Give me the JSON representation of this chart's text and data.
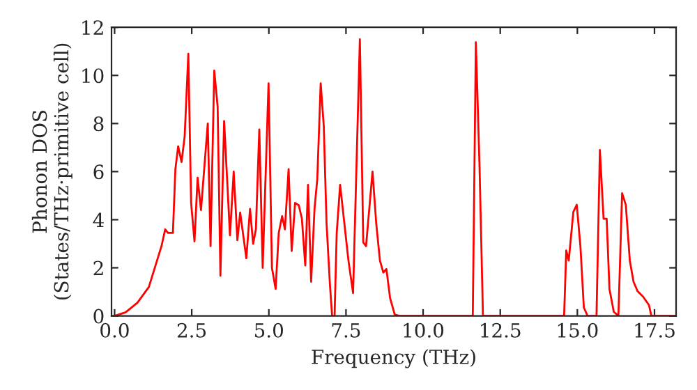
{
  "chart_data": {
    "type": "line",
    "xlabel": "Frequency (THz)",
    "ylabel": "Phonon DOS\n(States/THz·primitive cell)",
    "xlim": [
      -0.1,
      18.2
    ],
    "xticks": [
      {
        "value": 0,
        "label": "0.0"
      },
      {
        "value": 2.5,
        "label": "2.5"
      },
      {
        "value": 5,
        "label": "5.0"
      },
      {
        "value": 7.5,
        "label": "7.5"
      },
      {
        "value": 10,
        "label": "10.0"
      },
      {
        "value": 12.5,
        "label": "12.5"
      },
      {
        "value": 15,
        "label": "15.0"
      },
      {
        "value": 17.5,
        "label": "17.5"
      }
    ],
    "ylim": [
      0,
      12
    ],
    "yticks": [
      0,
      2,
      4,
      6,
      8,
      10,
      12
    ],
    "grid": false,
    "legend": false,
    "series": [
      {
        "color": "#ff0000",
        "x": [
          0,
          0.36,
          0.74,
          1.11,
          1.52,
          1.64,
          1.73,
          1.89,
          1.97,
          2.06,
          2.17,
          2.27,
          2.39,
          2.48,
          2.59,
          2.69,
          2.8,
          3.02,
          3.11,
          3.23,
          3.34,
          3.43,
          3.55,
          3.74,
          3.86,
          3.98,
          4.07,
          4.27,
          4.39,
          4.49,
          4.58,
          4.69,
          4.8,
          4.99,
          5.1,
          5.22,
          5.32,
          5.43,
          5.52,
          5.64,
          5.74,
          5.85,
          5.97,
          6.07,
          6.18,
          6.27,
          6.37,
          6.48,
          6.57,
          6.68,
          6.78,
          6.87,
          6.98,
          7.05,
          7.13,
          7.2,
          7.31,
          7.43,
          7.58,
          7.73,
          7.95,
          8.06,
          8.15,
          8.36,
          8.48,
          8.6,
          8.71,
          8.81,
          8.93,
          9.08,
          9.23,
          11.61,
          11.71,
          11.83,
          11.94,
          14.57,
          14.64,
          14.72,
          14.87,
          14.98,
          15.1,
          15.21,
          15.33,
          15.62,
          15.73,
          15.85,
          15.95,
          16.04,
          16.18,
          16.33,
          16.45,
          16.57,
          16.7,
          16.82,
          16.95,
          17.13,
          17.32,
          17.4,
          18.2
        ],
        "values": [
          0,
          0.15,
          0.55,
          1.2,
          2.9,
          3.6,
          3.45,
          3.45,
          6.1,
          7.05,
          6.4,
          7.45,
          10.9,
          4.7,
          3.1,
          5.75,
          4.4,
          8.0,
          2.9,
          10.2,
          8.7,
          1.67,
          8.1,
          3.35,
          6.0,
          3.15,
          4.3,
          2.4,
          4.45,
          3.0,
          3.6,
          7.75,
          2.0,
          9.67,
          2.0,
          1.12,
          3.45,
          4.15,
          3.6,
          6.1,
          2.7,
          4.7,
          4.6,
          4.05,
          2.1,
          5.45,
          1.42,
          4.45,
          5.7,
          9.67,
          7.9,
          3.85,
          1.3,
          0,
          0,
          3.45,
          5.45,
          4.05,
          2.3,
          0.95,
          11.5,
          3.05,
          2.9,
          6.0,
          3.85,
          2.3,
          1.8,
          1.95,
          0.74,
          0.06,
          0,
          0,
          11.38,
          6.17,
          0,
          0,
          2.72,
          2.3,
          4.33,
          4.62,
          2.87,
          0.35,
          0,
          0,
          6.9,
          4.04,
          4.04,
          1.12,
          0.17,
          0,
          5.1,
          4.62,
          2.3,
          1.42,
          1.03,
          0.8,
          0.45,
          0,
          0
        ]
      }
    ]
  }
}
